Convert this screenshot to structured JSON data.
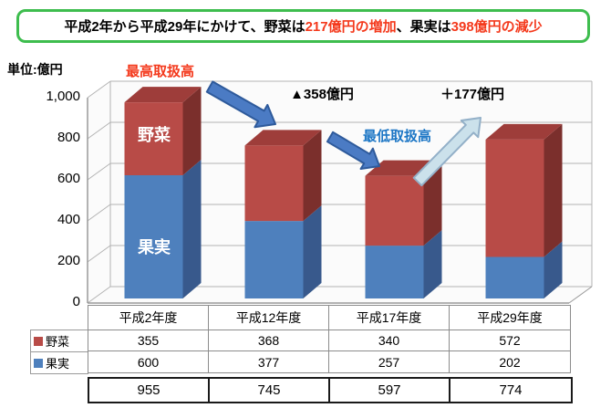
{
  "header": {
    "segments": [
      {
        "text": "平成2年から平成29年にかけて、野菜は",
        "color": "#000000"
      },
      {
        "text": "217億円の増加",
        "color": "#F4391C"
      },
      {
        "text": " 、果実は",
        "color": "#000000"
      },
      {
        "text": "398億円の減少",
        "color": "#F4391C"
      }
    ]
  },
  "annotations": {
    "peak_label": "最高取扱高",
    "trough_label": "最低取扱高",
    "decrease_label": "▲358億円",
    "increase_label": "＋177億円"
  },
  "chart_data": {
    "type": "bar",
    "stacked": true,
    "unit_label": "単位:億円",
    "categories": [
      "平成2年度",
      "平成12年度",
      "平成17年度",
      "平成29年度"
    ],
    "series": [
      {
        "name": "野菜",
        "values": [
          355,
          368,
          340,
          572
        ],
        "color": "#B84B47"
      },
      {
        "name": "果実",
        "values": [
          600,
          377,
          257,
          202
        ],
        "color": "#4E80BD"
      }
    ],
    "totals": [
      955,
      745,
      597,
      774
    ],
    "ylim": [
      0,
      1000
    ],
    "yticks": [
      {
        "value": 0,
        "label": "0"
      },
      {
        "value": 200,
        "label": "200"
      },
      {
        "value": 400,
        "label": "400"
      },
      {
        "value": 600,
        "label": "600"
      },
      {
        "value": 800,
        "label": "800"
      },
      {
        "value": 1000,
        "label": "1,000"
      }
    ],
    "grid": true,
    "legend_position": "table-left",
    "stack_order_bottom_to_top": [
      "果実",
      "野菜"
    ]
  },
  "colors": {
    "veg_front": "#B84B47",
    "veg_side": "#7B2F2C",
    "veg_top": "#9E3D3A",
    "fruit_front": "#4E80BD",
    "fruit_side": "#38598C",
    "arrow_down_fill": "#4B7BC4",
    "arrow_down_stroke": "#2E5A9B",
    "arrow_up_fill": "#CBE1EB",
    "arrow_up_stroke": "#93B0C8",
    "title_border": "#3EBD4E",
    "accent_red": "#F4391C",
    "accent_blue": "#1C76C5",
    "grid": "#B3B3B3",
    "axis": "#9A9A9A",
    "wall": "#FBFBFB",
    "table_border": "#8C8C8C",
    "totals_border": "#1A1A1A",
    "bar_label": "#FFFFFF"
  }
}
